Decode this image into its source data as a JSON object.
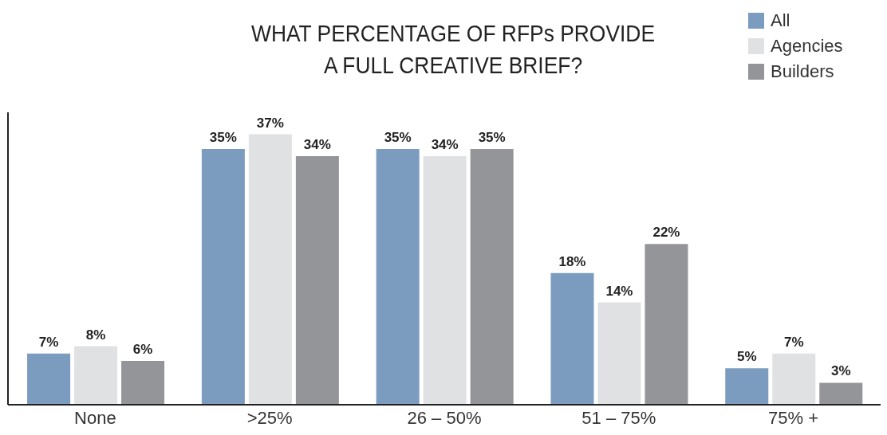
{
  "chart_data": {
    "type": "bar",
    "title": "WHAT PERCENTAGE OF RFPs PROVIDE\nA FULL CREATIVE BRIEF?",
    "categories": [
      "None",
      ">25%",
      "26 – 50%",
      "51 – 75%",
      "75% +"
    ],
    "series": [
      {
        "name": "All",
        "color": "#7b9bbf",
        "values": [
          7,
          35,
          35,
          18,
          5
        ],
        "value_labels": [
          "7%",
          "35%",
          "35%",
          "18%",
          "5%"
        ]
      },
      {
        "name": "Agencies",
        "color": "#e0e1e3",
        "values": [
          8,
          37,
          34,
          14,
          7
        ],
        "value_labels": [
          "8%",
          "37%",
          "34%",
          "14%",
          "7%"
        ]
      },
      {
        "name": "Builders",
        "color": "#939598",
        "values": [
          6,
          34,
          35,
          22,
          3
        ],
        "value_labels": [
          "6%",
          "34%",
          "35%",
          "22%",
          "3%"
        ]
      }
    ],
    "ylim": [
      0,
      40
    ],
    "tick_labels": "x",
    "legend": "top right",
    "grid": false
  }
}
